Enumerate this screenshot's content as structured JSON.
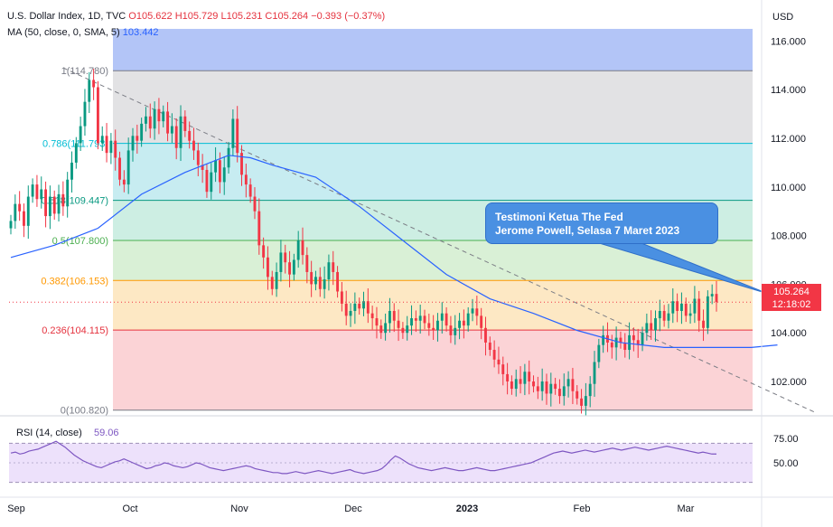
{
  "header": {
    "title": "U.S. Dollar Index, 1D, TVC",
    "ohlc": {
      "o": "O105.622",
      "h": "H105.729",
      "l": "L105.231",
      "c": "C105.264",
      "change": "−0.393 (−0.37%)"
    },
    "ma_label": "MA (50, close, 0, SMA, 5)",
    "ma_value": "103.442"
  },
  "price_badge": {
    "price": "105.264",
    "countdown": "12:18:02"
  },
  "annotation": {
    "line1": "Testimoni Ketua The Fed",
    "line2": "Jerome Powell, Selasa 7 Maret 2023"
  },
  "chart_data": [
    {
      "type": "candlestick",
      "currency_label": "USD",
      "ylim": [
        100.0,
        116.5
      ],
      "y_ticks": [
        "116.000",
        "114.000",
        "112.000",
        "110.000",
        "108.000",
        "106.000",
        "104.000",
        "102.000"
      ],
      "x_ticks": [
        "Sep",
        "Oct",
        "Nov",
        "Dec",
        "2023",
        "Feb",
        "Mar"
      ],
      "fib_levels": [
        {
          "label": "1(114.780)",
          "value": 114.78,
          "color": "#787b86"
        },
        {
          "label": "0.786(111.793)",
          "value": 111.793,
          "color": "#00bcd4"
        },
        {
          "label": "0.618(109.447)",
          "value": 109.447,
          "color": "#089981"
        },
        {
          "label": "0.5(107.800)",
          "value": 107.8,
          "color": "#4caf50"
        },
        {
          "label": "0.382(106.153)",
          "value": 106.153,
          "color": "#ff9800"
        },
        {
          "label": "0.236(104.115)",
          "value": 104.115,
          "color": "#e5323e"
        },
        {
          "label": "0(100.820)",
          "value": 100.82,
          "color": "#787b86"
        }
      ],
      "fib_bands": [
        {
          "from": 114.78,
          "to": 116.5,
          "color": "#b3c5f7"
        },
        {
          "from": 111.793,
          "to": 114.78,
          "color": "#e2e2e4"
        },
        {
          "from": 109.447,
          "to": 111.793,
          "color": "#c7ecf1"
        },
        {
          "from": 107.8,
          "to": 109.447,
          "color": "#cdeee3"
        },
        {
          "from": 106.153,
          "to": 107.8,
          "color": "#d9f0d6"
        },
        {
          "from": 104.115,
          "to": 106.153,
          "color": "#fde8c4"
        },
        {
          "from": 100.82,
          "to": 104.115,
          "color": "#fbd3d6"
        }
      ],
      "last_price": 105.264,
      "close_series": [
        108.6,
        109.3,
        109.0,
        108.4,
        109.6,
        110.1,
        109.5,
        109.9,
        108.8,
        109.6,
        108.9,
        109.7,
        109.2,
        110.3,
        111.0,
        111.8,
        112.5,
        113.5,
        114.4,
        114.1,
        111.8,
        112.1,
        111.4,
        111.9,
        111.2,
        110.3,
        110.1,
        111.5,
        112.1,
        111.9,
        112.6,
        112.9,
        112.4,
        113.2,
        112.7,
        113.1,
        112.2,
        112.5,
        111.6,
        112.9,
        112.3,
        111.9,
        111.5,
        110.9,
        110.7,
        109.8,
        110.6,
        111.1,
        110.2,
        110.8,
        111.6,
        112.8,
        111.4,
        110.5,
        110.1,
        109.6,
        109.0,
        107.6,
        107.1,
        106.3,
        105.8,
        106.5,
        107.3,
        106.9,
        106.4,
        107.0,
        107.8,
        107.2,
        106.5,
        106.0,
        106.3,
        105.8,
        106.2,
        106.9,
        106.5,
        105.7,
        105.2,
        104.7,
        104.9,
        105.2,
        105.0,
        105.3,
        104.8,
        104.6,
        104.3,
        104.0,
        104.4,
        104.9,
        104.5,
        104.2,
        104.0,
        104.3,
        104.6,
        104.5,
        104.7,
        104.4,
        104.2,
        104.1,
        104.5,
        104.8,
        104.3,
        103.9,
        104.2,
        104.5,
        104.3,
        104.8,
        105.0,
        104.7,
        104.2,
        103.6,
        103.3,
        102.9,
        102.7,
        102.3,
        102.0,
        101.7,
        102.1,
        101.9,
        102.4,
        102.0,
        101.8,
        101.6,
        102.0,
        101.5,
        101.9,
        101.7,
        101.4,
        101.8,
        102.1,
        101.6,
        101.3,
        101.0,
        101.4,
        101.9,
        102.8,
        103.5,
        103.9,
        103.6,
        103.4,
        103.8,
        103.6,
        103.3,
        103.9,
        103.7,
        103.5,
        104.0,
        104.4,
        104.1,
        104.6,
        104.9,
        104.5,
        104.8,
        105.3,
        104.9,
        105.2,
        104.7,
        104.8,
        105.4,
        104.5,
        104.2,
        105.5,
        105.6,
        105.264
      ],
      "ma_series_points": [
        [
          0,
          107.1
        ],
        [
          10,
          107.6
        ],
        [
          20,
          108.3
        ],
        [
          30,
          109.7
        ],
        [
          40,
          110.6
        ],
        [
          50,
          111.3
        ],
        [
          55,
          111.2
        ],
        [
          60,
          110.9
        ],
        [
          70,
          110.4
        ],
        [
          80,
          109.2
        ],
        [
          90,
          107.8
        ],
        [
          100,
          106.4
        ],
        [
          110,
          105.4
        ],
        [
          120,
          104.8
        ],
        [
          130,
          104.1
        ],
        [
          140,
          103.6
        ],
        [
          150,
          103.4
        ],
        [
          160,
          103.4
        ],
        [
          170,
          103.4
        ],
        [
          176,
          103.5
        ]
      ],
      "trendline": {
        "from": [
          12,
          114.9
        ],
        "to": [
          185,
          100.7
        ]
      },
      "callout_target": [
        174,
        105.6
      ]
    },
    {
      "type": "line",
      "series_name": "RSI (14, close)",
      "value_label": "59.06",
      "ylim": [
        30,
        85
      ],
      "y_ticks": [
        "75.00",
        "50.00"
      ],
      "band": [
        70,
        30
      ],
      "values": [
        60,
        61,
        59,
        60,
        62,
        63,
        64,
        66,
        68,
        70,
        72,
        69,
        66,
        62,
        58,
        55,
        52,
        50,
        48,
        46,
        45,
        47,
        49,
        51,
        52,
        54,
        52,
        50,
        48,
        46,
        44,
        45,
        47,
        48,
        50,
        49,
        47,
        46,
        45,
        46,
        48,
        50,
        49,
        47,
        45,
        44,
        43,
        42,
        43,
        44,
        45,
        46,
        47,
        46,
        44,
        43,
        42,
        41,
        40,
        40,
        39,
        39,
        40,
        41,
        40,
        39,
        40,
        41,
        42,
        41,
        40,
        39,
        40,
        41,
        42,
        43,
        41,
        40,
        39,
        40,
        41,
        42,
        44,
        48,
        53,
        57,
        55,
        52,
        49,
        47,
        45,
        44,
        43,
        42,
        43,
        44,
        45,
        44,
        43,
        42,
        42,
        43,
        44,
        45,
        44,
        43,
        42,
        42,
        43,
        44,
        45,
        46,
        47,
        48,
        49,
        50,
        52,
        54,
        56,
        58,
        60,
        61,
        62,
        61,
        60,
        61,
        62,
        63,
        62,
        61,
        62,
        63,
        64,
        65,
        64,
        63,
        64,
        65,
        66,
        65,
        64,
        63,
        64,
        65,
        66,
        67,
        66,
        65,
        64,
        63,
        62,
        61,
        60,
        61,
        60,
        59,
        59
      ]
    }
  ]
}
